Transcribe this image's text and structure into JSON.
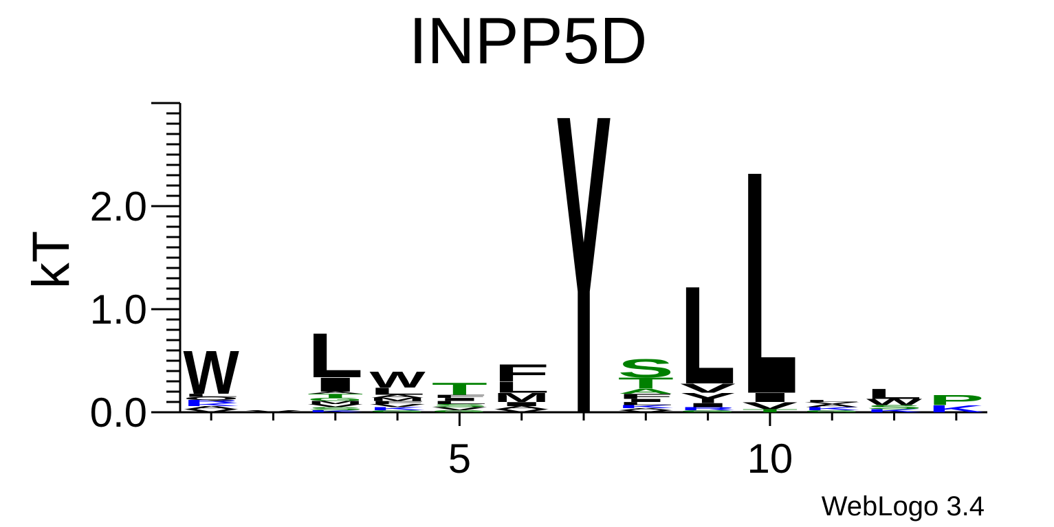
{
  "chart_data": {
    "type": "sequence-logo",
    "title": "INPP5D",
    "ylabel": "kT",
    "ylim": [
      0,
      3.0
    ],
    "yticks": [
      "0.0",
      "1.0",
      "2.0"
    ],
    "xticks": [
      {
        "pos": 5,
        "label": "5"
      },
      {
        "pos": 10,
        "label": "10"
      }
    ],
    "positions": 13,
    "credit": "WebLogo 3.4",
    "colors": {
      "hydrophobic": "#000000",
      "polar": "#008000",
      "basic": "#0000ff"
    },
    "stacks": [
      {
        "pos": 1,
        "letters": [
          {
            "c": "V",
            "h": 0.03,
            "color": "#000000"
          },
          {
            "c": "A",
            "h": 0.03,
            "color": "#000000"
          },
          {
            "c": "K",
            "h": 0.03,
            "color": "#0000ff"
          },
          {
            "c": "R",
            "h": 0.03,
            "color": "#0000ff"
          },
          {
            "c": "Q",
            "h": 0.03,
            "color": "#000000"
          },
          {
            "c": "L",
            "h": 0.03,
            "color": "#000000"
          },
          {
            "c": "W",
            "h": 0.43,
            "color": "#000000"
          }
        ]
      },
      {
        "pos": 2,
        "letters": [
          {
            "c": "V",
            "h": 0.02,
            "color": "#000000"
          }
        ]
      },
      {
        "pos": 3,
        "letters": [
          {
            "c": "K",
            "h": 0.02,
            "color": "#0000ff"
          },
          {
            "c": "S",
            "h": 0.03,
            "color": "#008000"
          },
          {
            "c": "V",
            "h": 0.03,
            "color": "#000000"
          },
          {
            "c": "M",
            "h": 0.03,
            "color": "#000000"
          },
          {
            "c": "G",
            "h": 0.03,
            "color": "#008000"
          },
          {
            "c": "T",
            "h": 0.04,
            "color": "#008000"
          },
          {
            "c": "A",
            "h": 0.02,
            "color": "#000000"
          },
          {
            "c": "I",
            "h": 0.14,
            "color": "#000000"
          },
          {
            "c": "L",
            "h": 0.44,
            "color": "#000000"
          }
        ]
      },
      {
        "pos": 4,
        "letters": [
          {
            "c": "G",
            "h": 0.02,
            "color": "#008000"
          },
          {
            "c": "K",
            "h": 0.03,
            "color": "#0000ff"
          },
          {
            "c": "V",
            "h": 0.03,
            "color": "#000000"
          },
          {
            "c": "F",
            "h": 0.03,
            "color": "#000000"
          },
          {
            "c": "M",
            "h": 0.03,
            "color": "#000000"
          },
          {
            "c": "A",
            "h": 0.03,
            "color": "#000000"
          },
          {
            "c": "L",
            "h": 0.07,
            "color": "#000000"
          },
          {
            "c": "W",
            "h": 0.16,
            "color": "#000000"
          }
        ]
      },
      {
        "pos": 5,
        "letters": [
          {
            "c": "G",
            "h": 0.02,
            "color": "#008000"
          },
          {
            "c": "V",
            "h": 0.03,
            "color": "#000000"
          },
          {
            "c": "S",
            "h": 0.03,
            "color": "#008000"
          },
          {
            "c": "L",
            "h": 0.03,
            "color": "#000000"
          },
          {
            "c": "I",
            "h": 0.03,
            "color": "#000000"
          },
          {
            "c": "F",
            "h": 0.03,
            "color": "#000000"
          },
          {
            "c": "T",
            "h": 0.12,
            "color": "#008000"
          }
        ]
      },
      {
        "pos": 6,
        "letters": [
          {
            "c": "V",
            "h": 0.03,
            "color": "#000000"
          },
          {
            "c": "A",
            "h": 0.03,
            "color": "#000000"
          },
          {
            "c": "I",
            "h": 0.04,
            "color": "#000000"
          },
          {
            "c": "M",
            "h": 0.09,
            "color": "#000000"
          },
          {
            "c": "L",
            "h": 0.11,
            "color": "#000000"
          },
          {
            "c": "F",
            "h": 0.17,
            "color": "#000000"
          }
        ]
      },
      {
        "pos": 7,
        "letters": [
          {
            "c": "Y",
            "h": 2.97,
            "color": "#000000"
          }
        ]
      },
      {
        "pos": 8,
        "letters": [
          {
            "c": "V",
            "h": 0.02,
            "color": "#000000"
          },
          {
            "c": "A",
            "h": 0.02,
            "color": "#000000"
          },
          {
            "c": "K",
            "h": 0.03,
            "color": "#0000ff"
          },
          {
            "c": "L",
            "h": 0.03,
            "color": "#000000"
          },
          {
            "c": "I",
            "h": 0.03,
            "color": "#000000"
          },
          {
            "c": "F",
            "h": 0.05,
            "color": "#000000"
          },
          {
            "c": "A",
            "h": 0.05,
            "color": "#008000"
          },
          {
            "c": "T",
            "h": 0.11,
            "color": "#008000"
          },
          {
            "c": "S",
            "h": 0.18,
            "color": "#008000"
          }
        ]
      },
      {
        "pos": 9,
        "letters": [
          {
            "c": "G",
            "h": 0.02,
            "color": "#008000"
          },
          {
            "c": "R",
            "h": 0.03,
            "color": "#0000ff"
          },
          {
            "c": "I",
            "h": 0.04,
            "color": "#000000"
          },
          {
            "c": "Y",
            "h": 0.1,
            "color": "#000000"
          },
          {
            "c": "V",
            "h": 0.09,
            "color": "#000000"
          },
          {
            "c": "L",
            "h": 0.97,
            "color": "#000000"
          }
        ]
      },
      {
        "pos": 10,
        "letters": [
          {
            "c": "T",
            "h": 0.03,
            "color": "#008000"
          },
          {
            "c": "V",
            "h": 0.07,
            "color": "#000000"
          },
          {
            "c": "I",
            "h": 0.09,
            "color": "#000000"
          },
          {
            "c": "L",
            "h": 2.21,
            "color": "#000000"
          }
        ]
      },
      {
        "pos": 11,
        "letters": [
          {
            "c": "G",
            "h": 0.02,
            "color": "#008000"
          },
          {
            "c": "K",
            "h": 0.03,
            "color": "#0000ff"
          },
          {
            "c": "A",
            "h": 0.03,
            "color": "#000000"
          },
          {
            "c": "V",
            "h": 0.02,
            "color": "#000000"
          },
          {
            "c": "L",
            "h": 0.02,
            "color": "#000000"
          }
        ]
      },
      {
        "pos": 12,
        "letters": [
          {
            "c": "K",
            "h": 0.03,
            "color": "#0000ff"
          },
          {
            "c": "S",
            "h": 0.04,
            "color": "#008000"
          },
          {
            "c": "W",
            "h": 0.06,
            "color": "#000000"
          },
          {
            "c": "L",
            "h": 0.1,
            "color": "#000000"
          }
        ]
      },
      {
        "pos": 13,
        "letters": [
          {
            "c": "K",
            "h": 0.07,
            "color": "#0000ff"
          },
          {
            "c": "P",
            "h": 0.1,
            "color": "#008000"
          }
        ]
      }
    ]
  }
}
